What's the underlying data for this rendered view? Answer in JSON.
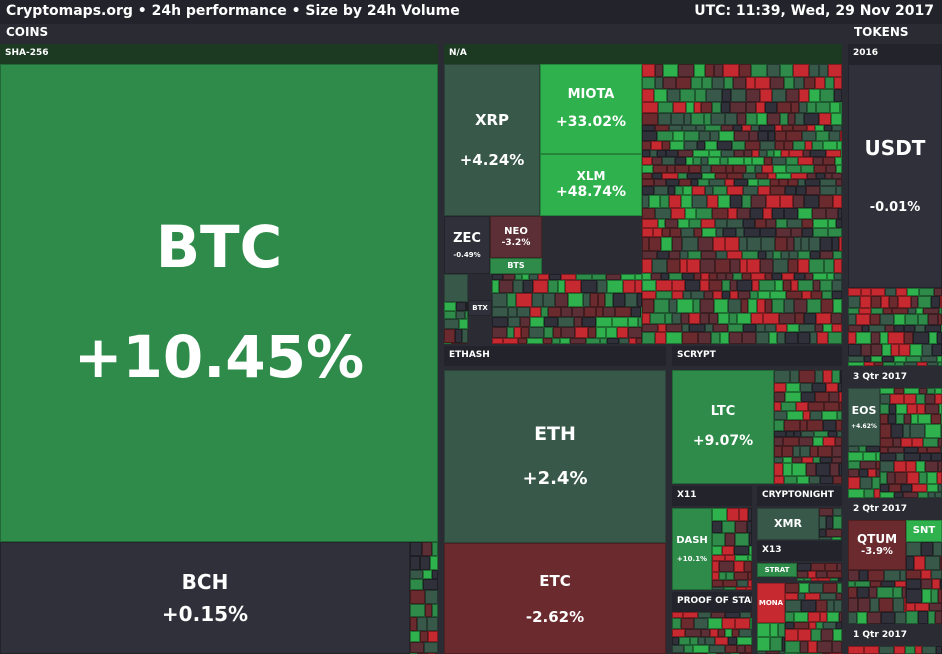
{
  "header": {
    "title": "Cryptomaps.org • 24h performance • Size by 24h Volume",
    "clock": "UTC: 11:39, Wed, 29 Nov 2017"
  },
  "sections": {
    "coins": "COINS",
    "tokens": "TOKENS"
  },
  "groups": {
    "sha256": "SHA-256",
    "na": "N/A",
    "ethash": "ETHASH",
    "scrypt": "SCRYPT",
    "x11": "X11",
    "cryptonight": "CRYPTONIGHT",
    "x13": "X13",
    "proof_of_stake": "PROOF OF STAI",
    "tokens_2016": "2016",
    "tokens_3qtr_2017": "3 Qtr 2017",
    "tokens_2qtr_2017": "2 Qtr 2017",
    "tokens_1qtr_2017": "1 Qtr 2017"
  },
  "tiles": {
    "btc": {
      "name": "BTC",
      "pct": "+10.45%"
    },
    "bch": {
      "name": "BCH",
      "pct": "+0.15%"
    },
    "xrp": {
      "name": "XRP",
      "pct": "+4.24%"
    },
    "miota": {
      "name": "MIOTA",
      "pct": "+33.02%"
    },
    "xlm": {
      "name": "XLM",
      "pct": "+48.74%"
    },
    "zec": {
      "name": "ZEC",
      "pct": "-0.49%"
    },
    "neo": {
      "name": "NEO",
      "pct": "-3.2%"
    },
    "bts": {
      "name": "BTS"
    },
    "btx": {
      "name": "BTX"
    },
    "eth": {
      "name": "ETH",
      "pct": "+2.4%"
    },
    "etc": {
      "name": "ETC",
      "pct": "-2.62%"
    },
    "ltc": {
      "name": "LTC",
      "pct": "+9.07%"
    },
    "dash": {
      "name": "DASH",
      "pct": "+10.1%"
    },
    "xmr": {
      "name": "XMR"
    },
    "strat": {
      "name": "STRAT"
    },
    "mona": {
      "name": "MONA"
    },
    "usdt": {
      "name": "USDT",
      "pct": "-0.01%"
    },
    "eos": {
      "name": "EOS",
      "pct": "+4.62%"
    },
    "qtum": {
      "name": "QTUM",
      "pct": "-3.9%"
    },
    "snt": {
      "name": "SNT"
    }
  },
  "colors": {
    "strong_green": "#2fb14e",
    "green": "#2e8b4a",
    "muted_green": "#38584a",
    "neutral": "#2f3039",
    "muted_red": "#5b2f35",
    "red": "#6b2a2e",
    "strong_red": "#c62a30"
  }
}
